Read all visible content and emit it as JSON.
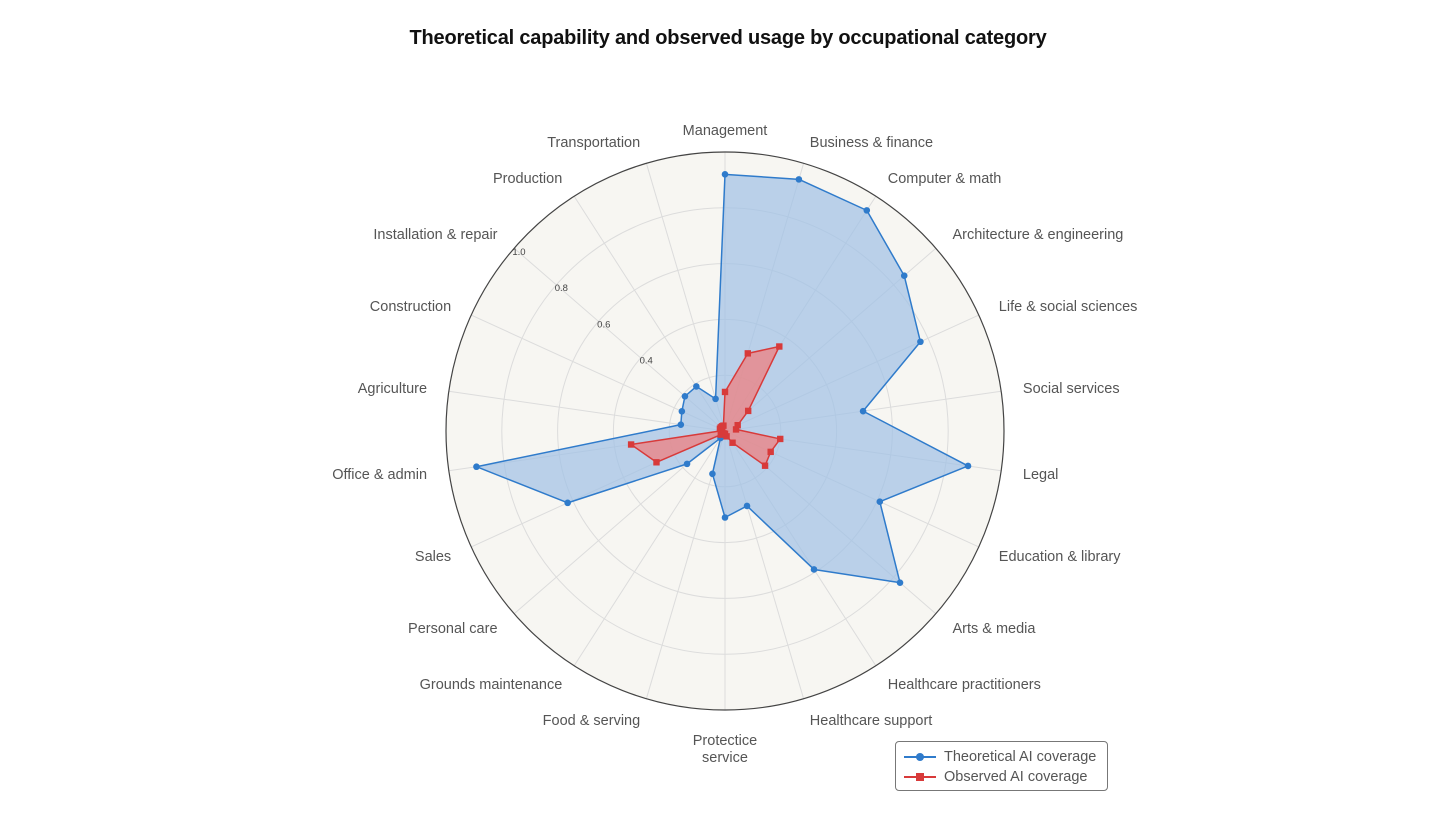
{
  "chart_data": {
    "type": "radar",
    "title": "Theoretical capability and observed usage by occupational category",
    "categories": [
      "Management",
      "Business & finance",
      "Computer & math",
      "Architecture & engineering",
      "Life & social sciences",
      "Social services",
      "Legal",
      "Education & library",
      "Arts & media",
      "Healthcare practitioners",
      "Healthcare support",
      "Protectice\nservice",
      "Food & serving",
      "Grounds maintenance",
      "Personal care",
      "Sales",
      "Office & admin",
      "Agriculture",
      "Construction",
      "Installation & repair",
      "Production",
      "Transportation"
    ],
    "radial_range": [
      0,
      1.0
    ],
    "radial_ticks": [
      "0.4",
      "0.6",
      "0.8",
      "1.0"
    ],
    "radial_tick_values": [
      0.4,
      0.6,
      0.8,
      1.0
    ],
    "grid": true,
    "legend_position": "bottom-right",
    "series": [
      {
        "name": "Theoretical AI coverage",
        "color": "#2f7bcb",
        "fill": "#9fc1e6",
        "marker": "circle",
        "values": [
          0.92,
          0.94,
          0.94,
          0.85,
          0.77,
          0.5,
          0.88,
          0.61,
          0.83,
          0.59,
          0.28,
          0.31,
          0.16,
          0.03,
          0.18,
          0.62,
          0.9,
          0.16,
          0.17,
          0.19,
          0.19,
          0.12
        ]
      },
      {
        "name": "Observed AI coverage",
        "color": "#d83a3a",
        "fill": "#ee8080",
        "marker": "square",
        "values": [
          0.14,
          0.29,
          0.36,
          0.11,
          0.05,
          0.04,
          0.2,
          0.18,
          0.19,
          0.05,
          0.02,
          0.01,
          0.01,
          0.01,
          0.02,
          0.27,
          0.34,
          0.01,
          0.02,
          0.02,
          0.02,
          0.02
        ]
      }
    ]
  }
}
